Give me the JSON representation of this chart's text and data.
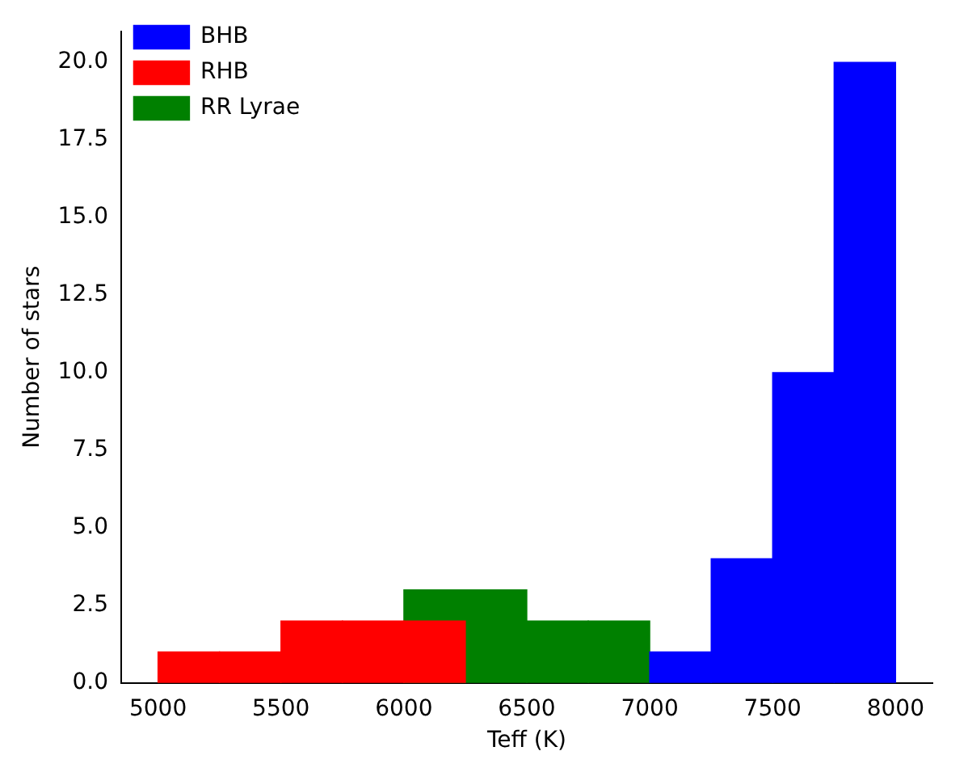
{
  "chart_data": {
    "type": "histogram",
    "xlabel": "Teff (K)",
    "ylabel": "Number of stars",
    "bins": [
      5000,
      5250,
      5500,
      5750,
      6000,
      6250,
      6500,
      6750,
      7000,
      7250,
      7500,
      7750,
      8000
    ],
    "series": [
      {
        "name": "BHB",
        "color": "#0000ff",
        "values": [
          null,
          null,
          null,
          null,
          null,
          null,
          null,
          null,
          1,
          4,
          10,
          20
        ]
      },
      {
        "name": "RHB",
        "color": "#ff0000",
        "values": [
          1,
          1,
          2,
          2,
          2,
          null,
          null,
          null,
          null,
          null,
          null,
          null
        ]
      },
      {
        "name": "RR Lyrae",
        "color": "#008000",
        "values": [
          null,
          null,
          null,
          null,
          3,
          3,
          2,
          2,
          null,
          null,
          null,
          null
        ]
      }
    ],
    "xlim": [
      4850,
      8150
    ],
    "xticks": [
      5000,
      5500,
      6000,
      6500,
      7000,
      7500,
      8000
    ],
    "ylim": [
      0,
      21
    ],
    "yticks": [
      {
        "value": 0,
        "label": "0.0"
      },
      {
        "value": 2.5,
        "label": "2.5"
      },
      {
        "value": 5,
        "label": "5.0"
      },
      {
        "value": 7.5,
        "label": "7.5"
      },
      {
        "value": 10,
        "label": "10.0"
      },
      {
        "value": 12.5,
        "label": "12.5"
      },
      {
        "value": 15,
        "label": "15.0"
      },
      {
        "value": 17.5,
        "label": "17.5"
      },
      {
        "value": 20,
        "label": "20.0"
      }
    ],
    "grid": false,
    "legend": "top left"
  }
}
